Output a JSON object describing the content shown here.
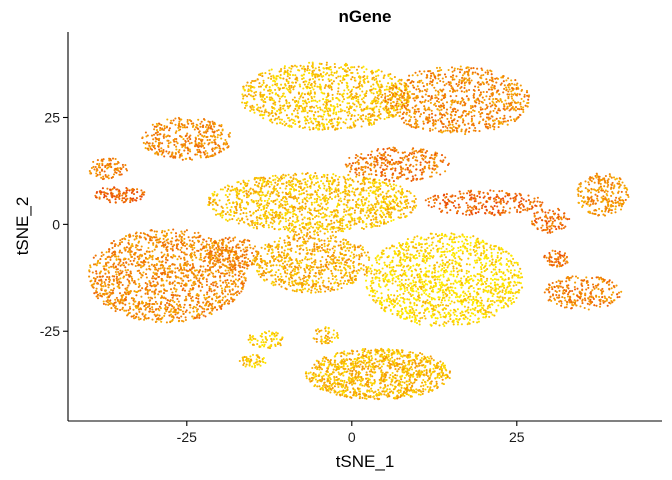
{
  "chart_data": {
    "type": "scatter",
    "title": "nGene",
    "xlabel": "tSNE_1",
    "ylabel": "tSNE_2",
    "xlim": [
      -43,
      47
    ],
    "ylim": [
      -46,
      45
    ],
    "xticks": [
      -25,
      0,
      25
    ],
    "xtick_labels": [
      "-25",
      "0",
      "25"
    ],
    "yticks": [
      -25,
      0,
      25
    ],
    "ytick_labels": [
      "-25",
      "0",
      "25"
    ],
    "grid": false,
    "legend": "none",
    "color_scale": {
      "low": "#ffee00",
      "high": "#e83a0a"
    },
    "clusters": [
      {
        "name": "top-center",
        "cx": -4,
        "cy": 30,
        "rx": 13,
        "ry": 8,
        "n": 1100,
        "level": 0.25
      },
      {
        "name": "top-right",
        "cx": 16,
        "cy": 29,
        "rx": 11,
        "ry": 8,
        "n": 850,
        "level": 0.55
      },
      {
        "name": "upper-left",
        "cx": -25,
        "cy": 20,
        "rx": 7,
        "ry": 5,
        "n": 380,
        "level": 0.55
      },
      {
        "name": "far-left-small-a",
        "cx": -37,
        "cy": 13,
        "rx": 3,
        "ry": 2.5,
        "n": 90,
        "level": 0.6
      },
      {
        "name": "far-left-small-b",
        "cx": -35,
        "cy": 7,
        "rx": 4,
        "ry": 2,
        "n": 110,
        "level": 0.75
      },
      {
        "name": "center",
        "cx": -6,
        "cy": 5,
        "rx": 16,
        "ry": 7,
        "n": 1300,
        "level": 0.25
      },
      {
        "name": "center-right-small",
        "cx": 7,
        "cy": 14,
        "rx": 8,
        "ry": 4,
        "n": 320,
        "level": 0.65
      },
      {
        "name": "right-streak",
        "cx": 20,
        "cy": 5,
        "rx": 9,
        "ry": 3,
        "n": 260,
        "level": 0.75
      },
      {
        "name": "far-right",
        "cx": 38,
        "cy": 7,
        "rx": 4,
        "ry": 5,
        "n": 240,
        "level": 0.5
      },
      {
        "name": "right-mid",
        "cx": 30,
        "cy": 1,
        "rx": 3,
        "ry": 3,
        "n": 100,
        "level": 0.7
      },
      {
        "name": "left-big",
        "cx": -28,
        "cy": -12,
        "rx": 12,
        "ry": 11,
        "n": 1500,
        "level": 0.55
      },
      {
        "name": "left-small",
        "cx": -18,
        "cy": -7,
        "rx": 4,
        "ry": 4,
        "n": 160,
        "level": 0.6
      },
      {
        "name": "center-lower",
        "cx": -6,
        "cy": -9,
        "rx": 9,
        "ry": 7,
        "n": 700,
        "level": 0.35
      },
      {
        "name": "center-lower-right",
        "cx": 14,
        "cy": -13,
        "rx": 12,
        "ry": 11,
        "n": 1400,
        "level": 0.1
      },
      {
        "name": "right-lower",
        "cx": 35,
        "cy": -16,
        "rx": 6,
        "ry": 4,
        "n": 250,
        "level": 0.6
      },
      {
        "name": "right-lower-small",
        "cx": 31,
        "cy": -8,
        "rx": 2,
        "ry": 2,
        "n": 60,
        "level": 0.7
      },
      {
        "name": "bottom",
        "cx": 4,
        "cy": -35,
        "rx": 11,
        "ry": 6,
        "n": 1100,
        "level": 0.3
      },
      {
        "name": "bottom-left-small-a",
        "cx": -13,
        "cy": -27,
        "rx": 3,
        "ry": 2,
        "n": 70,
        "level": 0.2
      },
      {
        "name": "bottom-left-small-b",
        "cx": -15,
        "cy": -32,
        "rx": 2,
        "ry": 1.5,
        "n": 50,
        "level": 0.2
      },
      {
        "name": "bottom-center-small",
        "cx": -4,
        "cy": -26,
        "rx": 2,
        "ry": 2,
        "n": 50,
        "level": 0.3
      }
    ]
  }
}
